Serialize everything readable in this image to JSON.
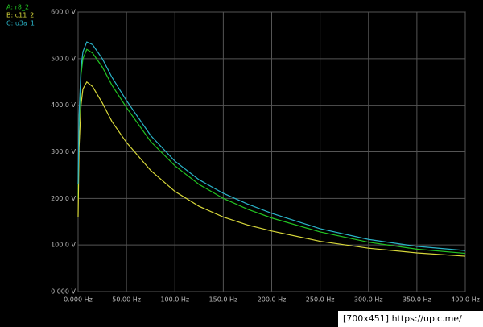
{
  "chart_data": {
    "type": "line",
    "x": [
      0,
      1,
      3,
      5,
      9,
      15,
      25,
      35,
      50,
      75,
      100,
      125,
      150,
      175,
      200,
      250,
      300,
      350,
      400
    ],
    "series": [
      {
        "name": "A: r8_2",
        "color": "#22c422",
        "values": [
          200,
          360,
          465,
          500,
          520,
          512,
          482,
          443,
          395,
          322,
          270,
          230,
          200,
          177,
          158,
          128,
          106,
          91,
          82
        ]
      },
      {
        "name": "B: c11_2",
        "color": "#d8d83a",
        "values": [
          160,
          310,
          400,
          435,
          450,
          440,
          405,
          365,
          320,
          260,
          215,
          183,
          160,
          143,
          130,
          108,
          93,
          83,
          76
        ]
      },
      {
        "name": "C: u3a_1",
        "color": "#2ab4c8",
        "values": [
          230,
          380,
          480,
          515,
          536,
          530,
          500,
          460,
          410,
          335,
          280,
          240,
          211,
          188,
          168,
          135,
          112,
          97,
          88
        ]
      }
    ],
    "xlim": [
      0,
      400
    ],
    "ylim": [
      0,
      600
    ],
    "xticks": [
      {
        "value": 0,
        "label": "0.000 Hz"
      },
      {
        "value": 50,
        "label": "50.00 Hz"
      },
      {
        "value": 100,
        "label": "100.0 Hz"
      },
      {
        "value": 150,
        "label": "150.0 Hz"
      },
      {
        "value": 200,
        "label": "200.0 Hz"
      },
      {
        "value": 250,
        "label": "250.0 Hz"
      },
      {
        "value": 300,
        "label": "300.0 Hz"
      },
      {
        "value": 350,
        "label": "350.0 Hz"
      },
      {
        "value": 400,
        "label": "400.0 Hz"
      }
    ],
    "yticks": [
      {
        "value": 0,
        "label": "0.000 V"
      },
      {
        "value": 100,
        "label": "100.0 V"
      },
      {
        "value": 200,
        "label": "200.0 V"
      },
      {
        "value": 300,
        "label": "300.0 V"
      },
      {
        "value": 400,
        "label": "400.0 V"
      },
      {
        "value": 500,
        "label": "500.0 V"
      },
      {
        "value": 600,
        "label": "600.0 V"
      }
    ],
    "grid": true,
    "watermark": "[700x451] https://upic.me/"
  }
}
